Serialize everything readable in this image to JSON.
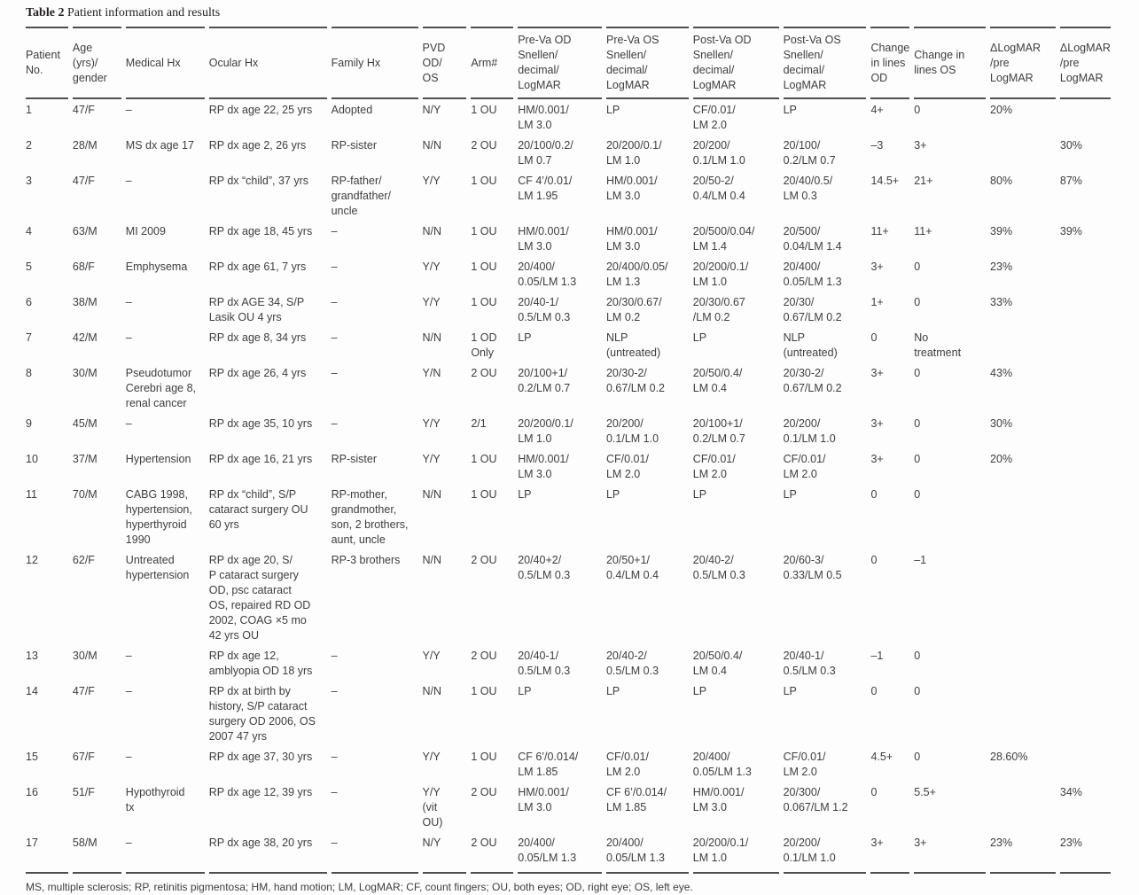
{
  "title": {
    "label": "Table 2",
    "caption": "Patient information and results"
  },
  "columns": [
    {
      "key": "patient-no",
      "label": "Patient\nNo."
    },
    {
      "key": "age-gender",
      "label": "Age\n(yrs)/\ngender"
    },
    {
      "key": "medical-hx",
      "label": "Medical Hx"
    },
    {
      "key": "ocular-hx",
      "label": "Ocular Hx"
    },
    {
      "key": "family-hx",
      "label": "Family Hx"
    },
    {
      "key": "pvd-od-os",
      "label": "PVD\nOD/\nOS"
    },
    {
      "key": "arm",
      "label": "Arm#"
    },
    {
      "key": "pre-va-od",
      "label": "Pre-Va OD\nSnellen/\ndecimal/\nLogMAR"
    },
    {
      "key": "pre-va-os",
      "label": "Pre-Va OS\nSnellen/\ndecimal/\nLogMAR"
    },
    {
      "key": "post-va-od",
      "label": "Post-Va OD\nSnellen/\ndecimal/\nLogMAR"
    },
    {
      "key": "post-va-os",
      "label": "Post-Va OS\nSnellen/\ndecimal/\nLogMAR"
    },
    {
      "key": "change-lines-od",
      "label": "Change\nin lines\nOD"
    },
    {
      "key": "change-lines-os",
      "label": "Change in\nlines OS"
    },
    {
      "key": "delta-logmar-pre-logmar-1",
      "label": "ΔLogMAR\n/pre\nLogMAR"
    },
    {
      "key": "delta-logmar-pre-logmar-2",
      "label": "ΔLogMAR\n/pre\nLogMAR"
    }
  ],
  "rows": [
    [
      "1",
      "47/F",
      "–",
      "RP dx age 22, 25 yrs",
      "Adopted",
      "N/Y",
      "1 OU",
      "HM/0.001/\nLM 3.0",
      "LP",
      "CF/0.01/\nLM 2.0",
      "LP",
      "4+",
      "0",
      "20%",
      ""
    ],
    [
      "2",
      "28/M",
      "MS dx age 17",
      "RP dx age 2, 26 yrs",
      "RP-sister",
      "N/N",
      "2 OU",
      "20/100/0.2/\nLM 0.7",
      "20/200/0.1/\nLM 1.0",
      "20/200/\n0.1/LM 1.0",
      "20/100/\n0.2/LM 0.7",
      "–3",
      "3+",
      "",
      "30%"
    ],
    [
      "3",
      "47/F",
      "–",
      "RP dx “child”, 37 yrs",
      "RP-father/\ngrandfather/\nuncle",
      "Y/Y",
      "1 OU",
      "CF 4’/0.01/\nLM 1.95",
      "HM/0.001/\nLM 3.0",
      "20/50-2/\n0.4/LM 0.4",
      "20/40/0.5/\nLM 0.3",
      "14.5+",
      "21+",
      "80%",
      "87%"
    ],
    [
      "4",
      "63/M",
      "MI 2009",
      "RP dx age 18, 45 yrs",
      "–",
      "N/N",
      "1 OU",
      "HM/0.001/\nLM 3.0",
      "HM/0.001/\nLM 3.0",
      "20/500/0.04/\nLM 1.4",
      "20/500/\n0.04/LM 1.4",
      "11+",
      "11+",
      "39%",
      "39%"
    ],
    [
      "5",
      "68/F",
      "Emphysema",
      "RP dx age 61, 7 yrs",
      "–",
      "Y/Y",
      "1 OU",
      "20/400/\n0.05/LM 1.3",
      "20/400/0.05/\nLM 1.3",
      "20/200/0.1/\nLM 1.0",
      "20/400/\n0.05/LM 1.3",
      "3+",
      "0",
      "23%",
      ""
    ],
    [
      "6",
      "38/M",
      "–",
      "RP dx AGE 34, S/P\nLasik OU 4 yrs",
      "–",
      "Y/Y",
      "1 OU",
      "20/40-1/\n0.5/LM 0.3",
      "20/30/0.67/\nLM 0.2",
      "20/30/0.67\n/LM 0.2",
      "20/30/\n0.67/LM 0.2",
      "1+",
      "0",
      "33%",
      ""
    ],
    [
      "7",
      "42/M",
      "–",
      "RP dx age 8, 34 yrs",
      "–",
      "N/N",
      "1 OD\nOnly",
      "LP",
      "NLP\n(untreated)",
      "LP",
      "NLP\n(untreated)",
      "0",
      "No\ntreatment",
      "",
      ""
    ],
    [
      "8",
      "30/M",
      "Pseudotumor\nCerebri age 8,\nrenal cancer",
      "RP dx age 26, 4 yrs",
      "–",
      "Y/N",
      "2 OU",
      "20/100+1/\n0.2/LM 0.7",
      "20/30-2/\n0.67/LM 0.2",
      "20/50/0.4/\nLM 0.4",
      "20/30-2/\n0.67/LM 0.2",
      "3+",
      "0",
      "43%",
      ""
    ],
    [
      "9",
      "45/M",
      "–",
      "RP dx age 35, 10 yrs",
      "–",
      "Y/Y",
      "2/1",
      "20/200/0.1/\nLM 1.0",
      "20/200/\n0.1/LM 1.0",
      "20/100+1/\n0.2/LM 0.7",
      "20/200/\n0.1/LM 1.0",
      "3+",
      "0",
      "30%",
      ""
    ],
    [
      "10",
      "37/M",
      "Hypertension",
      "RP dx age 16, 21 yrs",
      "RP-sister",
      "Y/Y",
      "1 OU",
      "HM/0.001/\nLM 3.0",
      "CF/0.01/\nLM 2.0",
      "CF/0.01/\nLM 2.0",
      "CF/0.01/\nLM 2.0",
      "3+",
      "0",
      "20%",
      ""
    ],
    [
      "11",
      "70/M",
      "CABG 1998,\nhypertension,\nhyperthyroid\n1990",
      "RP dx “child”, S/P\ncataract surgery OU\n60 yrs",
      "RP-mother,\ngrandmother,\nson, 2 brothers,\naunt, uncle",
      "N/N",
      "1 OU",
      "LP",
      "LP",
      "LP",
      "LP",
      "0",
      "0",
      "",
      ""
    ],
    [
      "12",
      "62/F",
      "Untreated\nhypertension",
      "RP dx age 20, S/\nP cataract surgery\nOD, psc cataract\nOS, repaired RD OD\n2002, COAG ×5 mo\n42 yrs OU",
      "RP-3 brothers",
      "N/N",
      "2 OU",
      "20/40+2/\n0.5/LM 0.3",
      "20/50+1/\n0.4/LM 0.4",
      "20/40-2/\n0.5/LM 0.3",
      "20/60-3/\n0.33/LM 0.5",
      "0",
      "–1",
      "",
      ""
    ],
    [
      "13",
      "30/M",
      "–",
      "RP dx age 12,\namblyopia OD 18 yrs",
      "–",
      "Y/Y",
      "2 OU",
      "20/40-1/\n0.5/LM 0.3",
      "20/40-2/\n0.5/LM 0.3",
      "20/50/0.4/\nLM 0.4",
      "20/40-1/\n0.5/LM 0.3",
      "–1",
      "0",
      "",
      ""
    ],
    [
      "14",
      "47/F",
      "–",
      "RP dx at birth by\nhistory, S/P cataract\nsurgery OD 2006, OS\n2007 47 yrs",
      "–",
      "N/N",
      "1 OU",
      "LP",
      "LP",
      "LP",
      "LP",
      "0",
      "0",
      "",
      ""
    ],
    [
      "15",
      "67/F",
      "–",
      "RP dx age 37, 30 yrs",
      "–",
      "Y/Y",
      "1 OU",
      "CF 6’/0.014/\nLM 1.85",
      "CF/0.01/\nLM 2.0",
      "20/400/\n0.05/LM 1.3",
      "CF/0.01/\nLM 2.0",
      "4.5+",
      "0",
      "28.60%",
      ""
    ],
    [
      "16",
      "51/F",
      "Hypothyroid\ntx",
      "RP dx age 12, 39 yrs",
      "–",
      "Y/Y\n(vit\nOU)",
      "2 OU",
      "HM/0.001/\nLM 3.0",
      "CF 6’/0.014/\nLM 1.85",
      "HM/0.001/\nLM 3.0",
      "20/300/\n0.067/LM 1.2",
      "0",
      "5.5+",
      "",
      "34%"
    ],
    [
      "17",
      "58/M",
      "–",
      "RP dx age 38, 20 yrs",
      "–",
      "N/Y",
      "2 OU",
      "20/400/\n0.05/LM 1.3",
      "20/400/\n0.05/LM 1.3",
      "20/200/0.1/\nLM 1.0",
      "20/200/\n0.1/LM 1.0",
      "3+",
      "3+",
      "23%",
      "23%"
    ]
  ],
  "footnote": "MS, multiple sclerosis; RP, retinitis pigmentosa; HM, hand motion; LM, LogMAR; CF, count fingers; OU, both eyes; OD, right eye; OS, left eye.",
  "colors": {
    "text": "#3e3e40",
    "rule": "#4e4f51",
    "background": "#fdfdfd",
    "title_text": "#231f20"
  }
}
